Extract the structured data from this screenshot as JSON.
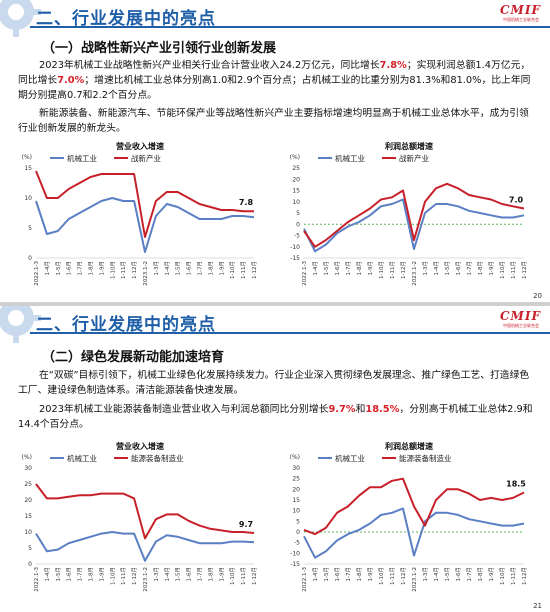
{
  "slides": [
    {
      "header": {
        "title": "二、行业发展中的亮点",
        "logo_text": "CMIF",
        "logo_sub": "中国机械工业联合会"
      },
      "subtitle": "（一）战略性新兴产业引领行业创新发展",
      "para1": {
        "t1": "2023年机械工业战略性新兴产业相关行业合计营业收入24.2万亿元，同比增长",
        "h1": "7.8%",
        "t2": "；实现利润总额1.4万亿元，同比增长",
        "h2": "7.0%",
        "t3": "；增速比机械工业总体分别高1.0和2.9个百分点；占机械工业的比重分别为81.3%和81.0%，比上年同期分别提高0.7和2.2个百分点。"
      },
      "para2": "新能源装备、新能源汽车、节能环保产业等战略性新兴产业主要指标增速均明显高于机械工业总体水平，成为引领行业创新发展的新龙头。",
      "page_number": "20"
    },
    {
      "header": {
        "title": "二、行业发展中的亮点",
        "logo_text": "CMIF",
        "logo_sub": "中国机械工业联合会"
      },
      "subtitle": "（二）绿色发展新动能加速培育",
      "para1": "在“双碳”目标引领下，机械工业绿色化发展持续发力。行业企业深入贯彻绿色发展理念、推广绿色工艺、打造绿色工厂、建设绿色制造体系。清洁能源装备快速发展。",
      "para2": {
        "t1": "2023年机械工业能源装备制造业营业收入与利润总额同比分别增长",
        "h1": "9.7%",
        "t2": "和",
        "h2": "18.5%",
        "t3": "，分别高于机械工业总体2.9和14.4个百分点。"
      },
      "page_number": "21"
    }
  ],
  "colors": {
    "blue": "#1f5fa8",
    "red": "#d71f27",
    "line_blue": "#5b7fc4",
    "line_red": "#c8202a",
    "zero_line": "#5cb85c",
    "logo_red": "#c8202a"
  },
  "chart_data": [
    {
      "type": "line",
      "title": "营业收入增速",
      "unit": "(%)",
      "categories": [
        "2022.1-3",
        "1-4月",
        "1-5月",
        "1-6月",
        "1-7月",
        "1-8月",
        "1-9月",
        "1-10月",
        "1-11月",
        "1-12月",
        "2023.1-2",
        "1-3月",
        "1-4月",
        "1-5月",
        "1-6月",
        "1-7月",
        "1-8月",
        "1-9月",
        "1-10月",
        "1-11月",
        "1-12月"
      ],
      "yticks": [
        "0",
        "5",
        "10",
        "15"
      ],
      "ylim": [
        0,
        15
      ],
      "series": [
        {
          "name": "机械工业",
          "values": [
            9.5,
            4.0,
            4.5,
            6.5,
            7.5,
            8.5,
            9.5,
            10.0,
            9.5,
            9.5,
            1.0,
            7.0,
            9.0,
            8.5,
            7.5,
            6.5,
            6.5,
            6.5,
            7.0,
            7.0,
            6.8
          ]
        },
        {
          "name": "战新产业",
          "values": [
            14.5,
            10.0,
            10.0,
            11.5,
            12.5,
            13.5,
            14.0,
            14.0,
            14.0,
            14.0,
            3.5,
            9.5,
            11.0,
            11.0,
            10.0,
            9.0,
            8.5,
            8.0,
            8.0,
            7.8,
            7.8
          ]
        }
      ],
      "end_label": "7.8",
      "zero_line": false
    },
    {
      "type": "line",
      "title": "利润总额增速",
      "unit": "(%)",
      "categories": [
        "2022.1-3",
        "1-4月",
        "1-5月",
        "1-6月",
        "1-7月",
        "1-8月",
        "1-9月",
        "1-10月",
        "1-11月",
        "1-12月",
        "2023.1-2",
        "1-3月",
        "1-4月",
        "1-5月",
        "1-6月",
        "1-7月",
        "1-8月",
        "1-9月",
        "1-10月",
        "1-11月",
        "1-12月"
      ],
      "yticks": [
        "-15",
        "-10",
        "-5",
        "0",
        "5",
        "10",
        "15",
        "20",
        "25"
      ],
      "ylim": [
        -15,
        25
      ],
      "series": [
        {
          "name": "机械工业",
          "values": [
            -2,
            -12,
            -9,
            -4,
            -1,
            1,
            4,
            8,
            9,
            11,
            -11,
            5,
            9,
            9,
            8,
            6,
            5,
            4,
            3,
            3,
            4
          ]
        },
        {
          "name": "战新产业",
          "values": [
            -3,
            -10,
            -7,
            -3,
            1,
            4,
            7,
            11,
            12,
            15,
            -7,
            10,
            16,
            18,
            16,
            13,
            12,
            11,
            9,
            8,
            7
          ]
        }
      ],
      "end_label": "7.0",
      "zero_line": true
    },
    {
      "type": "line",
      "title": "营业收入增速",
      "unit": "(%)",
      "categories": [
        "2022.1-3",
        "1-4月",
        "1-5月",
        "1-6月",
        "1-7月",
        "1-8月",
        "1-9月",
        "1-10月",
        "1-11月",
        "1-12月",
        "2023.1-2",
        "1-3月",
        "1-4月",
        "1-5月",
        "1-6月",
        "1-7月",
        "1-8月",
        "1-9月",
        "1-10月",
        "1-11月",
        "1-12月"
      ],
      "yticks": [
        "0",
        "5",
        "10",
        "15",
        "20",
        "25",
        "30"
      ],
      "ylim": [
        0,
        30
      ],
      "series": [
        {
          "name": "机械工业",
          "values": [
            9.5,
            4.0,
            4.5,
            6.5,
            7.5,
            8.5,
            9.5,
            10.0,
            9.5,
            9.5,
            1.0,
            7.0,
            9.0,
            8.5,
            7.5,
            6.5,
            6.5,
            6.5,
            7.0,
            7.0,
            6.8
          ]
        },
        {
          "name": "能源装备制造业",
          "values": [
            25.0,
            20.5,
            20.5,
            21.0,
            21.5,
            21.5,
            22.0,
            22.0,
            22.0,
            20.5,
            8.0,
            14.0,
            15.5,
            15.5,
            13.5,
            12.0,
            11.0,
            10.5,
            10.0,
            10.0,
            9.7
          ]
        }
      ],
      "end_label": "9.7",
      "zero_line": false
    },
    {
      "type": "line",
      "title": "利润总额增速",
      "unit": "(%)",
      "categories": [
        "2022.1-3",
        "1-4月",
        "1-5月",
        "1-6月",
        "1-7月",
        "1-8月",
        "1-9月",
        "1-10月",
        "1-11月",
        "1-12月",
        "2023.1-2",
        "1-3月",
        "1-4月",
        "1-5月",
        "1-6月",
        "1-7月",
        "1-8月",
        "1-9月",
        "1-10月",
        "1-11月",
        "1-12月"
      ],
      "yticks": [
        "-15",
        "-10",
        "-5",
        "0",
        "5",
        "10",
        "15",
        "20",
        "25",
        "30"
      ],
      "ylim": [
        -15,
        30
      ],
      "series": [
        {
          "name": "机械工业",
          "values": [
            -2,
            -12,
            -9,
            -4,
            -1,
            1,
            4,
            8,
            9,
            11,
            -11,
            5,
            9,
            9,
            8,
            6,
            5,
            4,
            3,
            3,
            4
          ]
        },
        {
          "name": "能源装备制造业",
          "values": [
            1,
            -1,
            2,
            9,
            12,
            17,
            21,
            21,
            24,
            25,
            12,
            3,
            15,
            20,
            20,
            18,
            15,
            16,
            15,
            16,
            18.5
          ]
        }
      ],
      "end_label": "18.5",
      "zero_line": true
    }
  ]
}
